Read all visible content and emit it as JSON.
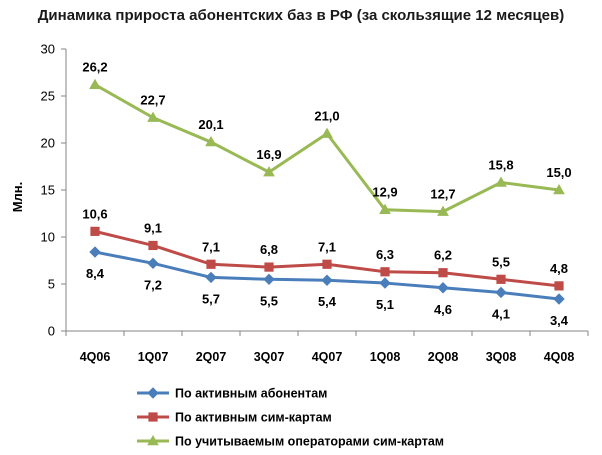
{
  "chart_data": {
    "type": "line",
    "title": "Динамика прироста абонентских баз в РФ (за скользящие 12 месяцев)",
    "ylabel": "Млн.",
    "xlabel": "",
    "ylim": [
      0,
      30
    ],
    "yticks": [
      0,
      5,
      10,
      15,
      20,
      25,
      30
    ],
    "categories": [
      "4Q06",
      "1Q07",
      "2Q07",
      "3Q07",
      "4Q07",
      "1Q08",
      "2Q08",
      "3Q08",
      "4Q08"
    ],
    "grid": false,
    "legend_position": "bottom",
    "series": [
      {
        "name": "По активным абонентам",
        "color": "#4a7ebb",
        "marker": "diamond",
        "label_side": "below",
        "values": [
          8.4,
          7.2,
          5.7,
          5.5,
          5.4,
          5.1,
          4.6,
          4.1,
          3.4
        ],
        "labels": [
          "8,4",
          "7,2",
          "5,7",
          "5,5",
          "5,4",
          "5,1",
          "4,6",
          "4,1",
          "3,4"
        ]
      },
      {
        "name": "По активным сим-картам",
        "color": "#be4b48",
        "marker": "square",
        "label_side": "above",
        "values": [
          10.6,
          9.1,
          7.1,
          6.8,
          7.1,
          6.3,
          6.2,
          5.5,
          4.8
        ],
        "labels": [
          "10,6",
          "9,1",
          "7,1",
          "6,8",
          "7,1",
          "6,3",
          "6,2",
          "5,5",
          "4,8"
        ]
      },
      {
        "name": "По учитываемым операторами сим-картам",
        "color": "#98b954",
        "marker": "triangle",
        "label_side": "above",
        "values": [
          26.2,
          22.7,
          20.1,
          16.9,
          21.0,
          12.9,
          12.7,
          15.8,
          15.0
        ],
        "labels": [
          "26,2",
          "22,7",
          "20,1",
          "16,9",
          "21,0",
          "12,9",
          "12,7",
          "15,8",
          "15,0"
        ]
      }
    ]
  }
}
